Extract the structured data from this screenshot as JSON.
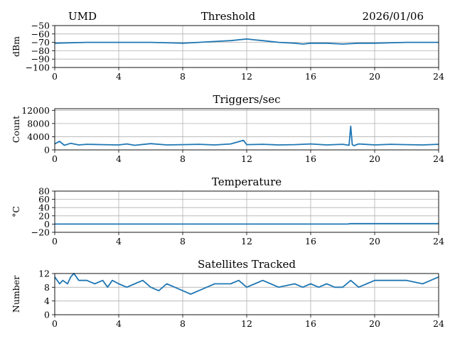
{
  "header": {
    "left": "UMD",
    "center": "Threshold",
    "right": "2026/01/06"
  },
  "colors": {
    "series": "#1f77b4",
    "grid": "#b0b0b0",
    "axis": "#000000"
  },
  "chart_data": [
    {
      "type": "line",
      "title": "",
      "ylabel": "dBm",
      "xlim": [
        0,
        24
      ],
      "ylim": [
        -100,
        -50
      ],
      "xticks": [
        "0",
        "4",
        "8",
        "12",
        "16",
        "20",
        "24"
      ],
      "yticks": [
        "−50",
        "−60",
        "−70",
        "−80",
        "−90",
        "−100"
      ],
      "grid": true,
      "series": [
        {
          "x": [
            0,
            2,
            4,
            6,
            8,
            9,
            10,
            11,
            12,
            12.5,
            13,
            14,
            15,
            15.5,
            16,
            17,
            18,
            19,
            20,
            22,
            24
          ],
          "values": [
            -71,
            -70,
            -70,
            -70,
            -71,
            -70,
            -69,
            -68,
            -66,
            -67,
            -68,
            -70,
            -71,
            -72,
            -71,
            -71,
            -72,
            -71,
            -71,
            -70,
            -70
          ]
        }
      ]
    },
    {
      "type": "line",
      "title": "Triggers/sec",
      "ylabel": "Count",
      "xlim": [
        0,
        24
      ],
      "ylim": [
        0,
        12500
      ],
      "xticks": [
        "0",
        "4",
        "8",
        "12",
        "16",
        "20",
        "24"
      ],
      "yticks": [
        "0",
        "4000",
        "8000",
        "12000"
      ],
      "grid": true,
      "series": [
        {
          "x": [
            0,
            0.3,
            0.6,
            1,
            1.5,
            2,
            3,
            4,
            4.5,
            5,
            6,
            7,
            8,
            9,
            10,
            11,
            11.8,
            12,
            13,
            14,
            15,
            16,
            17,
            18,
            18.4,
            18.5,
            18.6,
            18.7,
            19,
            20,
            21,
            22,
            23,
            24
          ],
          "values": [
            1800,
            2600,
            1400,
            2000,
            1500,
            1700,
            1600,
            1500,
            1800,
            1400,
            1900,
            1500,
            1600,
            1700,
            1500,
            1800,
            2900,
            1600,
            1700,
            1500,
            1600,
            1800,
            1500,
            1700,
            1400,
            7200,
            1600,
            1300,
            1800,
            1500,
            1700,
            1600,
            1500,
            1700
          ]
        }
      ]
    },
    {
      "type": "line",
      "title": "Temperature",
      "ylabel": "°C",
      "xlim": [
        0,
        24
      ],
      "ylim": [
        -20,
        80
      ],
      "xticks": [
        "0",
        "4",
        "8",
        "12",
        "16",
        "20",
        "24"
      ],
      "yticks": [
        "80",
        "60",
        "40",
        "20",
        "0",
        "−20"
      ],
      "grid": true,
      "series": [
        {
          "x": [
            0,
            12,
            18.3,
            18.5,
            24
          ],
          "values": [
            0,
            0,
            0,
            1,
            1
          ]
        }
      ]
    },
    {
      "type": "line",
      "title": "Satellites Tracked",
      "ylabel": "Number",
      "xlim": [
        0,
        24
      ],
      "ylim": [
        0,
        12
      ],
      "xticks": [
        "0",
        "4",
        "8",
        "12",
        "16",
        "20",
        "24"
      ],
      "yticks": [
        "12",
        "8",
        "4",
        "0"
      ],
      "grid": true,
      "series": [
        {
          "x": [
            0,
            0.3,
            0.5,
            0.8,
            1,
            1.2,
            1.5,
            2,
            2.5,
            3,
            3.3,
            3.6,
            4,
            4.5,
            5,
            5.5,
            6,
            6.5,
            7,
            7.5,
            8,
            8.5,
            9,
            9.5,
            10,
            11,
            11.5,
            12,
            12.5,
            13,
            14,
            15,
            15.5,
            16,
            16.5,
            17,
            17.5,
            18,
            18.5,
            19,
            19.5,
            20,
            21,
            22,
            23,
            23.5,
            24
          ],
          "values": [
            11,
            9,
            10,
            9,
            11,
            12,
            10,
            10,
            9,
            10,
            8,
            10,
            9,
            8,
            9,
            10,
            8,
            7,
            9,
            8,
            7,
            6,
            7,
            8,
            9,
            9,
            10,
            8,
            9,
            10,
            8,
            9,
            8,
            9,
            8,
            9,
            8,
            8,
            10,
            8,
            9,
            10,
            10,
            10,
            9,
            10,
            11
          ]
        }
      ]
    }
  ]
}
